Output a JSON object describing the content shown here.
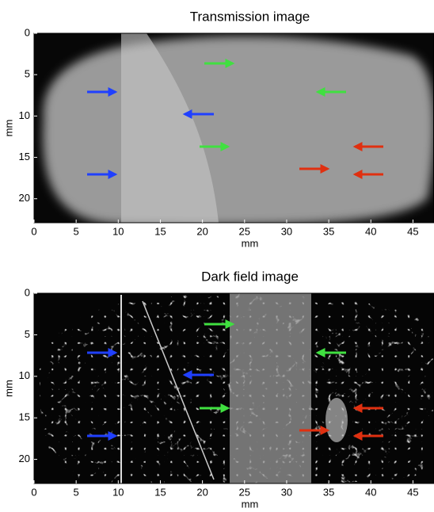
{
  "chart_data": [
    {
      "type": "image",
      "title": "Transmission image",
      "xlabel": "mm",
      "ylabel": "mm",
      "xlim": [
        0,
        47.5
      ],
      "ylim": [
        22.9,
        0
      ],
      "xticks": [
        0,
        5,
        10,
        15,
        20,
        25,
        30,
        35,
        40,
        45
      ],
      "yticks": [
        0,
        5,
        10,
        15,
        20
      ]
    },
    {
      "type": "image",
      "title": "Dark field image",
      "xlabel": "mm",
      "ylabel": "mm",
      "xlim": [
        0,
        47.5
      ],
      "ylim": [
        22.9,
        0
      ],
      "xticks": [
        0,
        5,
        10,
        15,
        20,
        25,
        30,
        35,
        40,
        45
      ],
      "yticks": [
        0,
        5,
        10,
        15,
        20
      ]
    }
  ]
}
